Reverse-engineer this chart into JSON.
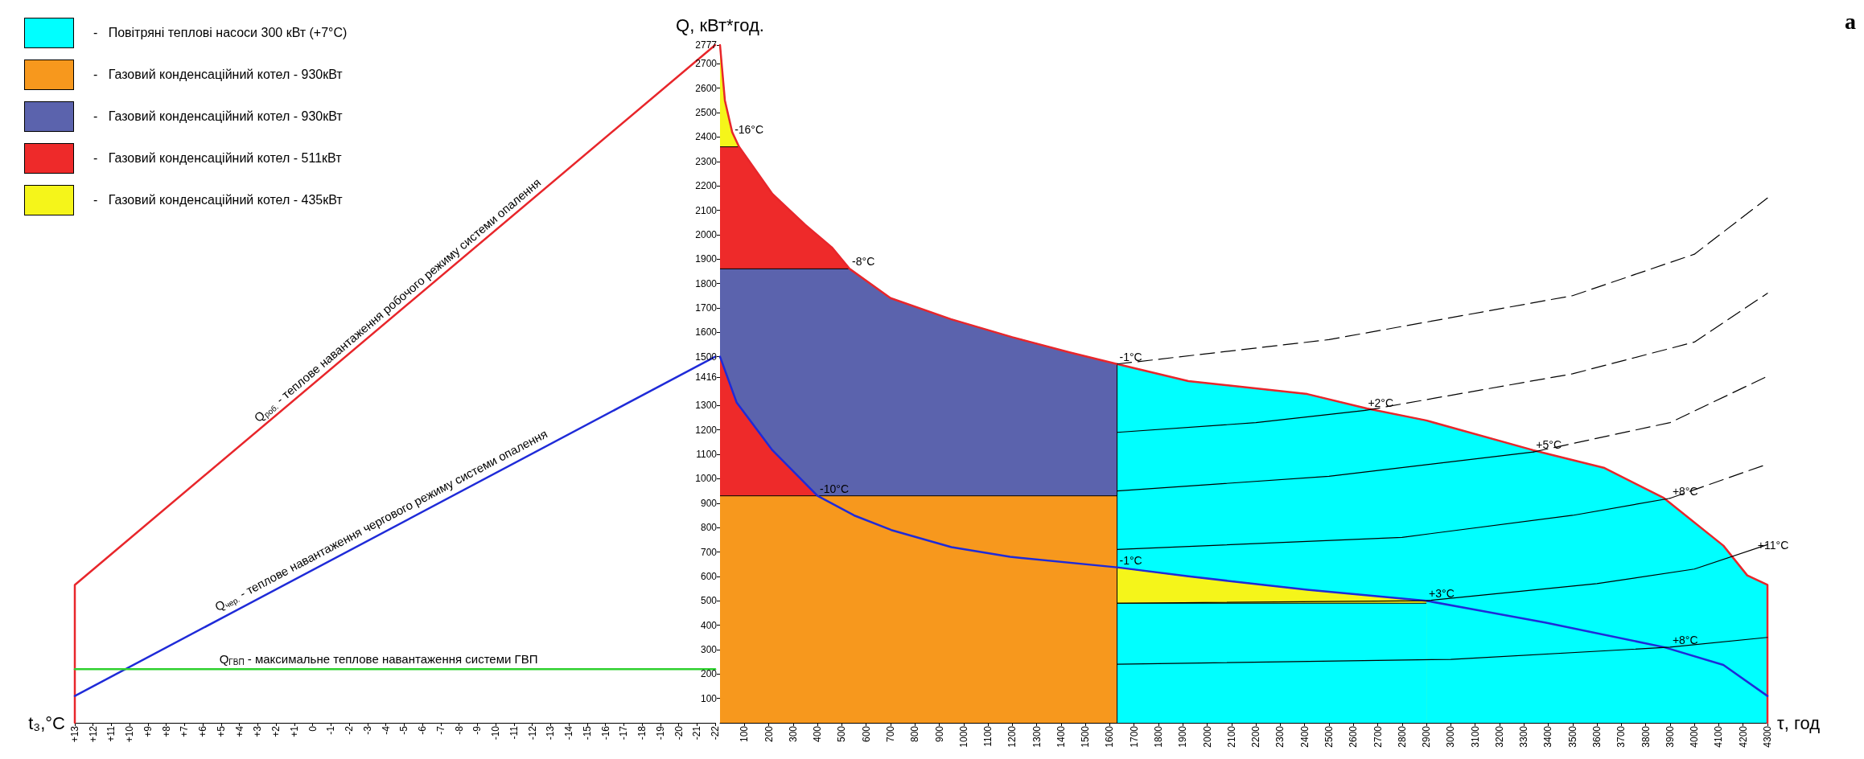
{
  "chart_data": [
    {
      "type": "line",
      "xlabel": "t₃,°C",
      "xlim": [
        13,
        -22
      ],
      "xticks": [
        {
          "value": 13,
          "label": "+13"
        },
        {
          "value": 12,
          "label": "+12"
        },
        {
          "value": 11,
          "label": "+11"
        },
        {
          "value": 10,
          "label": "+10"
        },
        {
          "value": 9,
          "label": "+9"
        },
        {
          "value": 8,
          "label": "+8"
        },
        {
          "value": 7,
          "label": "+7"
        },
        {
          "value": 6,
          "label": "+6"
        },
        {
          "value": 5,
          "label": "+5"
        },
        {
          "value": 4,
          "label": "+4"
        },
        {
          "value": 3,
          "label": "+3"
        },
        {
          "value": 2,
          "label": "+2"
        },
        {
          "value": 1,
          "label": "+1"
        },
        0,
        -1,
        -2,
        -3,
        -4,
        -5,
        -6,
        -7,
        -8,
        -9,
        -10,
        -11,
        -12,
        -13,
        -14,
        -15,
        -16,
        -17,
        -18,
        -19,
        -20,
        -21,
        -22
      ],
      "ylim": [
        0,
        2777
      ],
      "tick_labels": "x",
      "grid": false,
      "legend": false,
      "line_style": "solid",
      "series": [
        {
          "color": "#e8262b",
          "x": [
            13,
            13,
            -22
          ],
          "values": [
            0,
            565,
            2777
          ]
        },
        {
          "color": "#1f2bd8",
          "x": [
            13,
            -22
          ],
          "values": [
            110,
            1500
          ]
        },
        {
          "color": "#2fd12f",
          "x": [
            13,
            -22
          ],
          "values": [
            220,
            220
          ]
        }
      ],
      "annotations": [
        {
          "text": "Q$_{роб.}$ - теплове навантаження робочого режиму системи опалення",
          "x": -5,
          "y": 1700
        },
        {
          "text": "Q$_{чер.}$ - теплове навантаження чергового режиму системи опалення",
          "x": -4,
          "y": 793
        },
        {
          "text": "Q$_{ГВП}$ - максимальне теплове навантаження системи ГВП",
          "x": -3.6,
          "y": 220
        }
      ]
    },
    {
      "type": "line",
      "xlabel": "τ, год",
      "ylabel": "Q, кВт*год.",
      "xlim": [
        0,
        4300
      ],
      "xticks": [
        100,
        200,
        300,
        400,
        500,
        600,
        700,
        800,
        900,
        1000,
        1100,
        1200,
        1300,
        1400,
        1500,
        1600,
        1700,
        1800,
        1900,
        2000,
        2100,
        2200,
        2300,
        2400,
        2500,
        2600,
        2700,
        2800,
        2900,
        3000,
        3100,
        3200,
        3300,
        3400,
        3500,
        3600,
        3700,
        3800,
        3900,
        4000,
        4100,
        4200,
        4300
      ],
      "ylim": [
        0,
        2777
      ],
      "yticks": [
        100,
        200,
        300,
        400,
        500,
        600,
        700,
        800,
        900,
        1000,
        1100,
        1200,
        1300,
        1416,
        1500,
        1600,
        1700,
        1800,
        1900,
        2000,
        2100,
        2200,
        2300,
        2400,
        2500,
        2600,
        2700,
        2777
      ],
      "grid": false,
      "legend": "top left",
      "line_style": "solid",
      "series": [
        {
          "type": "area",
          "color": "#00ffff",
          "x": [
            1630,
            2900
          ],
          "values": [
            490,
            490
          ]
        },
        {
          "type": "area",
          "color": "#f5f51a",
          "x": [
            1630,
            1923,
            2411,
            2900
          ],
          "values": [
            637,
            600,
            545,
            500
          ]
        },
        {
          "type": "area",
          "name": "-   Повітряні теплові насоси 300 кВт (+7°C)",
          "color": "#00ffff",
          "x": [
            1630,
            1630,
            1923,
            2411,
            2655,
            2899,
            3338,
            3631,
            3875,
            4119,
            4217,
            4300,
            4300
          ],
          "values": [
            0,
            1470,
            1400,
            1347,
            1288,
            1239,
            1117,
            1044,
            921,
            726,
            604,
            565,
            0
          ]
        },
        {
          "type": "area",
          "name": "-   Газовий конденсаційний котел - 930кВт",
          "color": "#f7981d",
          "x": [
            0,
            1630
          ],
          "values": [
            930,
            930
          ]
        },
        {
          "type": "area",
          "color": "#ee2a2a",
          "x": [
            0,
            68,
            215,
            400
          ],
          "values": [
            1500,
            1313,
            1117,
            930
          ]
        },
        {
          "type": "area",
          "name": "-   Газовий конденсаційний котел - 930кВт",
          "color": "#5b63ad",
          "x": [
            0,
            532,
            700,
            947,
            1200,
            1435,
            1630
          ],
          "values": [
            1860,
            1860,
            1740,
            1654,
            1580,
            1518,
            1470
          ]
        },
        {
          "type": "area",
          "name": "-   Газовий конденсаційний котел - 511кВт",
          "color": "#ee2a2a",
          "x": [
            0,
            78,
            215,
            350,
            459,
            532
          ],
          "values": [
            2360,
            2360,
            2167,
            2040,
            1948,
            1860
          ]
        },
        {
          "type": "area",
          "name": "-   Газовий конденсаційний котел - 435кВт",
          "color": "#f5f51a",
          "x": [
            0,
            20,
            50,
            78
          ],
          "values": [
            2777,
            2550,
            2420,
            2360
          ]
        },
        {
          "color": "#e8262b",
          "x": [
            0,
            20,
            50,
            78,
            215,
            350,
            459,
            532,
            700,
            947,
            1200,
            1435,
            1630,
            1923,
            2411,
            2655,
            2899,
            3338,
            3631,
            3875,
            4119,
            4217,
            4300,
            4300
          ],
          "values": [
            2777,
            2550,
            2420,
            2360,
            2167,
            2040,
            1948,
            1860,
            1740,
            1654,
            1580,
            1518,
            1470,
            1400,
            1347,
            1288,
            1239,
            1117,
            1044,
            921,
            726,
            604,
            565,
            0
          ]
        },
        {
          "color": "#1f2bd8",
          "x": [
            0,
            68,
            215,
            400,
            550,
            703,
            950,
            1191,
            1630,
            1923,
            2411,
            2900,
            3387,
            3875,
            4119,
            4300
          ],
          "values": [
            1500,
            1313,
            1117,
            930,
            850,
            790,
            720,
            680,
            637,
            600,
            545,
            500,
            411,
            310,
            237,
            110
          ]
        },
        {
          "color": "#000000",
          "line_style": "dashed",
          "x": [
            1630,
            2500,
            3500,
            4000,
            4300
          ],
          "values": [
            1470,
            1570,
            1750,
            1920,
            2150
          ]
        },
        {
          "color": "#000000",
          "x": [
            1630,
            2200,
            2650
          ],
          "values": [
            1190,
            1230,
            1280
          ]
        },
        {
          "color": "#000000",
          "line_style": "dashed",
          "x": [
            2650,
            3500,
            4000,
            4300
          ],
          "values": [
            1280,
            1430,
            1560,
            1760
          ]
        },
        {
          "color": "#000000",
          "x": [
            1630,
            2500,
            3340
          ],
          "values": [
            950,
            1010,
            1110
          ]
        },
        {
          "color": "#000000",
          "line_style": "dashed",
          "x": [
            3340,
            3900,
            4300
          ],
          "values": [
            1110,
            1230,
            1420
          ]
        },
        {
          "color": "#000000",
          "x": [
            1630,
            2800,
            3500,
            3900
          ],
          "values": [
            710,
            760,
            850,
            920
          ]
        },
        {
          "color": "#000000",
          "line_style": "dashed",
          "x": [
            3900,
            4300
          ],
          "values": [
            920,
            1060
          ]
        },
        {
          "color": "#000000",
          "x": [
            1630,
            2900,
            3600,
            4000,
            4300
          ],
          "values": [
            490,
            500,
            570,
            630,
            730
          ]
        },
        {
          "color": "#000000",
          "x": [
            1630,
            3000,
            3900,
            4300
          ],
          "values": [
            240,
            260,
            310,
            350
          ]
        }
      ],
      "annotations": [
        {
          "text": "-16°C",
          "x": 50,
          "y": 2400
        },
        {
          "text": "-8°C",
          "x": 532,
          "y": 1860
        },
        {
          "text": "-1°C",
          "x": 1630,
          "y": 1470
        },
        {
          "text": "+2°C",
          "x": 2650,
          "y": 1280
        },
        {
          "text": "+5°C",
          "x": 3340,
          "y": 1110
        },
        {
          "text": "+8°C",
          "x": 3900,
          "y": 920
        },
        {
          "text": "+11°C",
          "x": 4250,
          "y": 700
        },
        {
          "text": "-10°C",
          "x": 400,
          "y": 930
        },
        {
          "text": "-1°C",
          "x": 1630,
          "y": 637
        },
        {
          "text": "+3°C",
          "x": 2900,
          "y": 500
        },
        {
          "text": "+8°C",
          "x": 3900,
          "y": 310
        },
        "а"
      ]
    }
  ]
}
